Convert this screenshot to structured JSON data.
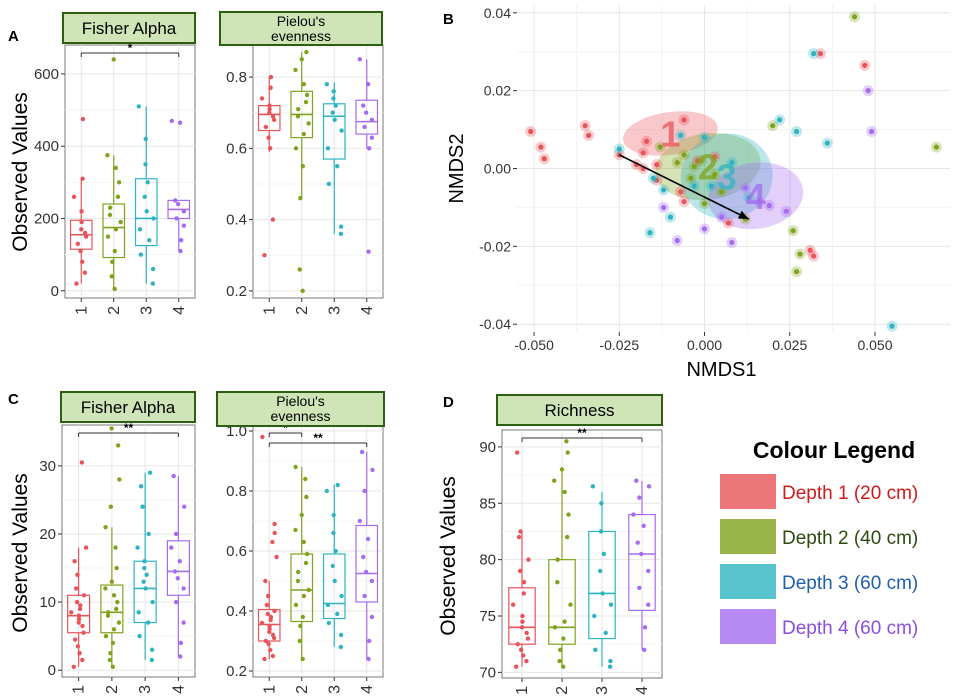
{
  "colors": {
    "d1": "#e8545a",
    "d2": "#7fa31c",
    "d3": "#2db4c0",
    "d4": "#a56bf0",
    "strip": "#cfe5b8",
    "strip_border": "#2d5f10",
    "grid": "#e6e6e6"
  },
  "panel_labels": {
    "a": "A",
    "b": "B",
    "c": "C",
    "d": "D"
  },
  "y_axis_label": "Observed Values",
  "categories": [
    "1",
    "2",
    "3",
    "4"
  ],
  "legend": {
    "title": "Colour Legend",
    "items": [
      {
        "label": "Depth 1 (20 cm)",
        "color": "#e8545a",
        "text_color": "#d11a1a"
      },
      {
        "label": "Depth 2 (40 cm)",
        "color": "#7fa31c",
        "text_color": "#2d4a0f"
      },
      {
        "label": "Depth 3 (60 cm)",
        "color": "#2db4c0",
        "text_color": "#1f5fb0"
      },
      {
        "label": "Depth 4 (60 cm)",
        "color": "#a56bf0",
        "text_color": "#8a4fe0"
      }
    ]
  },
  "chart_data": [
    {
      "id": "A1",
      "type": "box",
      "title": "Fisher Alpha",
      "ylabel": "Observed Values",
      "ylim": [
        -20,
        680
      ],
      "yticks": [
        0,
        200,
        400,
        600
      ],
      "boxes": [
        {
          "q1": 115,
          "med": 155,
          "q3": 195,
          "lo": 20,
          "hi": 310
        },
        {
          "q1": 92,
          "med": 175,
          "q3": 240,
          "lo": 5,
          "hi": 375
        },
        {
          "q1": 125,
          "med": 200,
          "q3": 310,
          "lo": 20,
          "hi": 510
        },
        {
          "q1": 200,
          "med": 225,
          "q3": 250,
          "lo": 110,
          "hi": 250
        }
      ],
      "points": [
        [
          20,
          50,
          80,
          110,
          130,
          150,
          160,
          170,
          190,
          220,
          260,
          310,
          475
        ],
        [
          5,
          40,
          80,
          110,
          150,
          170,
          190,
          210,
          230,
          260,
          300,
          340,
          375,
          640
        ],
        [
          20,
          60,
          100,
          140,
          170,
          200,
          220,
          260,
          300,
          350,
          420,
          510
        ],
        [
          110,
          140,
          180,
          200,
          220,
          240,
          250,
          465,
          470
        ]
      ],
      "sig": [
        {
          "from": 1,
          "to": 4,
          "label": "*"
        }
      ]
    },
    {
      "id": "A2",
      "type": "box",
      "title": "Pielou's evenness",
      "ylabel": "",
      "ylim": [
        0.18,
        0.89
      ],
      "yticks": [
        0.2,
        0.4,
        0.6,
        0.8
      ],
      "boxes": [
        {
          "q1": 0.65,
          "med": 0.695,
          "q3": 0.72,
          "lo": 0.59,
          "hi": 0.8
        },
        {
          "q1": 0.63,
          "med": 0.695,
          "q3": 0.76,
          "lo": 0.46,
          "hi": 0.87
        },
        {
          "q1": 0.57,
          "med": 0.69,
          "q3": 0.725,
          "lo": 0.36,
          "hi": 0.785
        },
        {
          "q1": 0.64,
          "med": 0.675,
          "q3": 0.735,
          "lo": 0.6,
          "hi": 0.85
        }
      ],
      "points": [
        [
          0.3,
          0.4,
          0.6,
          0.63,
          0.66,
          0.68,
          0.69,
          0.7,
          0.71,
          0.72,
          0.74,
          0.77,
          0.8
        ],
        [
          0.2,
          0.26,
          0.46,
          0.55,
          0.6,
          0.64,
          0.67,
          0.69,
          0.71,
          0.73,
          0.75,
          0.78,
          0.82,
          0.85,
          0.87
        ],
        [
          0.36,
          0.38,
          0.5,
          0.55,
          0.6,
          0.65,
          0.68,
          0.7,
          0.72,
          0.74,
          0.76,
          0.78
        ],
        [
          0.31,
          0.6,
          0.63,
          0.66,
          0.68,
          0.7,
          0.72,
          0.78,
          0.85
        ]
      ],
      "sig": []
    },
    {
      "id": "B",
      "type": "scatter",
      "title": "",
      "xlabel": "NMDS1",
      "ylabel": "NMDS2",
      "xlim": [
        -0.055,
        0.072
      ],
      "ylim": [
        -0.042,
        0.042
      ],
      "xticks": [
        -0.05,
        -0.025,
        0,
        0.025,
        0.05
      ],
      "xtick_labels": [
        "-0.050",
        "-0.025",
        "0.000",
        "0.025",
        "0.050"
      ],
      "yticks": [
        -0.04,
        -0.02,
        0,
        0.02,
        0.04
      ],
      "ytick_labels": [
        "-0.04",
        "-0.02",
        "0.00",
        "0.02",
        "0.04"
      ],
      "groups": [
        {
          "label": "1",
          "cx": -0.01,
          "cy": 0.009,
          "rx": 0.014,
          "ry": 0.0055,
          "pts": [
            [
              -0.051,
              0.0095
            ],
            [
              -0.048,
              0.0055
            ],
            [
              -0.047,
              0.0025
            ],
            [
              -0.035,
              0.011
            ],
            [
              -0.034,
              0.0085
            ],
            [
              -0.025,
              0.0035
            ],
            [
              -0.02,
              0.001
            ],
            [
              -0.017,
              0.007
            ],
            [
              -0.018,
              0.0
            ],
            [
              -0.014,
              -0.003
            ],
            [
              -0.007,
              -0.006
            ],
            [
              -0.006,
              -0.0085
            ],
            [
              -0.002,
              0.002
            ],
            [
              0.003,
              0.003
            ],
            [
              0.007,
              -0.014
            ],
            [
              -0.006,
              0.0125
            ],
            [
              0.031,
              -0.021
            ],
            [
              0.032,
              -0.0225
            ],
            [
              0.034,
              0.0295
            ],
            [
              0.047,
              0.0265
            ],
            [
              -0.014,
              0.001
            ],
            [
              -0.018,
              0.004
            ]
          ]
        },
        {
          "label": "2",
          "cx": 0.001,
          "cy": 0.0005,
          "rx": 0.0155,
          "ry": 0.0085,
          "pts": [
            [
              -0.013,
              0.0055
            ],
            [
              -0.008,
              0.0015
            ],
            [
              -0.006,
              0.0035
            ],
            [
              -0.003,
              0.0005
            ],
            [
              -0.001,
              0.002
            ],
            [
              0.0,
              -0.009
            ],
            [
              0.003,
              -0.0015
            ],
            [
              0.005,
              -0.006
            ],
            [
              0.012,
              -0.013
            ],
            [
              0.02,
              0.011
            ],
            [
              0.026,
              -0.016
            ],
            [
              0.027,
              -0.0265
            ],
            [
              0.028,
              -0.022
            ],
            [
              0.044,
              0.039
            ],
            [
              0.068,
              0.0055
            ],
            [
              -0.004,
              -0.0025
            ]
          ]
        },
        {
          "label": "3",
          "cx": 0.0065,
          "cy": -0.002,
          "rx": 0.0135,
          "ry": 0.011,
          "pts": [
            [
              -0.025,
              0.005
            ],
            [
              -0.015,
              -0.0025
            ],
            [
              -0.012,
              -0.0055
            ],
            [
              -0.01,
              -0.0125
            ],
            [
              -0.007,
              0.0085
            ],
            [
              -0.003,
              -0.0045
            ],
            [
              0.0,
              0.008
            ],
            [
              0.002,
              -0.0045
            ],
            [
              0.008,
              0.0015
            ],
            [
              0.013,
              -0.0075
            ],
            [
              0.022,
              0.0125
            ],
            [
              0.027,
              0.0095
            ],
            [
              0.032,
              0.0295
            ],
            [
              0.036,
              0.0065
            ],
            [
              0.055,
              -0.0405
            ],
            [
              -0.016,
              -0.0165
            ]
          ]
        },
        {
          "label": "4",
          "cx": 0.015,
          "cy": -0.007,
          "rx": 0.014,
          "ry": 0.0085,
          "pts": [
            [
              -0.008,
              -0.0185
            ],
            [
              0.0,
              -0.0155
            ],
            [
              0.005,
              -0.0125
            ],
            [
              0.008,
              -0.019
            ],
            [
              0.012,
              -0.005
            ],
            [
              0.016,
              -0.0085
            ],
            [
              0.019,
              -0.0095
            ],
            [
              0.024,
              -0.011
            ],
            [
              0.048,
              0.02
            ],
            [
              0.049,
              0.0095
            ],
            [
              -0.012,
              -0.01
            ]
          ]
        }
      ],
      "arrow": {
        "from": [
          -0.025,
          0.0035
        ],
        "to": [
          0.013,
          -0.013
        ]
      }
    },
    {
      "id": "C1",
      "type": "box",
      "title": "Fisher Alpha",
      "ylabel": "Observed Values",
      "ylim": [
        -1,
        36
      ],
      "yticks": [
        0,
        10,
        20,
        30
      ],
      "boxes": [
        {
          "q1": 5.5,
          "med": 8,
          "q3": 11,
          "lo": 0.5,
          "hi": 18
        },
        {
          "q1": 5.5,
          "med": 8.5,
          "q3": 12.5,
          "lo": 0.5,
          "hi": 21
        },
        {
          "q1": 7,
          "med": 12,
          "q3": 16,
          "lo": 1.5,
          "hi": 29
        },
        {
          "q1": 11,
          "med": 14.5,
          "q3": 19,
          "lo": 2,
          "hi": 28.5
        }
      ],
      "points": [
        [
          0.5,
          1.5,
          2.5,
          3.5,
          4.5,
          5.5,
          6.5,
          7,
          7.5,
          8,
          8.5,
          9,
          9.5,
          10,
          11,
          12,
          14,
          16,
          18,
          30.5
        ],
        [
          0.5,
          1.5,
          2.5,
          4,
          5,
          6,
          7,
          8,
          8.5,
          9,
          10,
          11,
          12,
          13,
          15,
          18,
          21,
          24,
          28,
          33,
          35.5
        ],
        [
          1.5,
          3,
          5,
          7,
          8.5,
          10,
          12,
          13,
          14,
          15,
          16,
          18,
          20,
          24,
          27,
          29
        ],
        [
          2,
          4,
          7,
          10,
          12,
          13.5,
          14.5,
          16,
          18,
          20,
          24,
          28.5
        ]
      ],
      "sig": [
        {
          "from": 1,
          "to": 4,
          "label": "**"
        }
      ]
    },
    {
      "id": "C2",
      "type": "box",
      "title": "Pielou's evenness",
      "ylabel": "",
      "ylim": [
        0.18,
        1.02
      ],
      "yticks": [
        0.2,
        0.4,
        0.6,
        0.8,
        1.0
      ],
      "ytick_labels": [
        "0.2",
        "0.4",
        "0.6",
        "0.8",
        "1.0"
      ],
      "boxes": [
        {
          "q1": 0.3,
          "med": 0.355,
          "q3": 0.405,
          "lo": 0.24,
          "hi": 0.5
        },
        {
          "q1": 0.365,
          "med": 0.47,
          "q3": 0.59,
          "lo": 0.24,
          "hi": 0.88
        },
        {
          "q1": 0.375,
          "med": 0.425,
          "q3": 0.59,
          "lo": 0.28,
          "hi": 0.82
        },
        {
          "q1": 0.43,
          "med": 0.525,
          "q3": 0.685,
          "lo": 0.24,
          "hi": 0.93
        }
      ],
      "points": [
        [
          0.24,
          0.25,
          0.27,
          0.29,
          0.3,
          0.31,
          0.32,
          0.33,
          0.34,
          0.35,
          0.36,
          0.37,
          0.38,
          0.39,
          0.4,
          0.42,
          0.45,
          0.5,
          0.58,
          0.63,
          0.66,
          0.69,
          0.98
        ],
        [
          0.24,
          0.3,
          0.35,
          0.38,
          0.42,
          0.45,
          0.47,
          0.5,
          0.53,
          0.56,
          0.59,
          0.63,
          0.67,
          0.72,
          0.78,
          0.84,
          0.88
        ],
        [
          0.28,
          0.32,
          0.36,
          0.39,
          0.42,
          0.45,
          0.5,
          0.55,
          0.6,
          0.66,
          0.72,
          0.8,
          0.82
        ],
        [
          0.24,
          0.3,
          0.38,
          0.45,
          0.5,
          0.53,
          0.58,
          0.64,
          0.7,
          0.8,
          0.87,
          0.93
        ]
      ],
      "sig": [
        {
          "from": 1,
          "to": 2,
          "label": "*"
        },
        {
          "from": 1,
          "to": 4,
          "label": "**"
        }
      ]
    },
    {
      "id": "D",
      "type": "box",
      "title": "Richness",
      "ylabel": "Observed Values",
      "ylim": [
        69.5,
        91.5
      ],
      "yticks": [
        70,
        75,
        80,
        85,
        90
      ],
      "boxes": [
        {
          "q1": 72.5,
          "med": 74,
          "q3": 77.5,
          "lo": 70.5,
          "hi": 82.5
        },
        {
          "q1": 72.5,
          "med": 74,
          "q3": 80,
          "lo": 70.5,
          "hi": 88
        },
        {
          "q1": 73,
          "med": 77,
          "q3": 82.5,
          "lo": 70.5,
          "hi": 86
        },
        {
          "q1": 75.5,
          "med": 80.5,
          "q3": 84,
          "lo": 72,
          "hi": 87
        }
      ],
      "points": [
        [
          70.5,
          71,
          71.5,
          72,
          72.5,
          73,
          73.5,
          74,
          74.5,
          75,
          76,
          77,
          78,
          79,
          80,
          82,
          82.5,
          89.5
        ],
        [
          70.5,
          71,
          72,
          73,
          74,
          74.5,
          76,
          78,
          80,
          82,
          84,
          86,
          87,
          88,
          89.5,
          90.5
        ],
        [
          70.5,
          71,
          72,
          73.5,
          75,
          76,
          77,
          79,
          80.5,
          82.5,
          85,
          86.5
        ],
        [
          72,
          74,
          76,
          77.5,
          79,
          80.5,
          81.5,
          83,
          84,
          85.5,
          86.5,
          87
        ]
      ],
      "sig": [
        {
          "from": 1,
          "to": 4,
          "label": "**"
        }
      ]
    }
  ]
}
